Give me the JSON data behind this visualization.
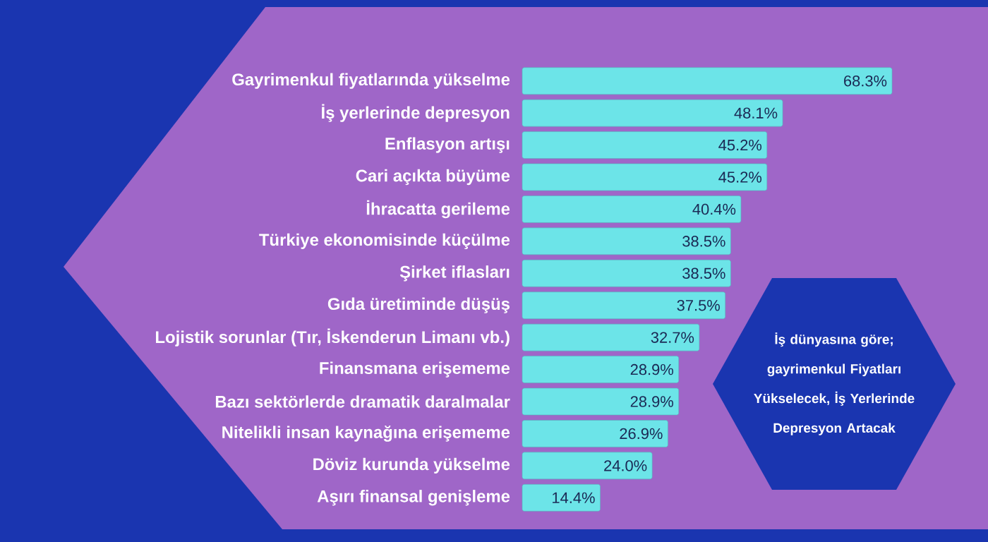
{
  "chart_data": {
    "type": "bar",
    "orientation": "horizontal",
    "title": "İş dünyasına göre; gayrimenkul Fiyatları Yükselecek, İş Yerlerinde Depresyon Artacak",
    "categories": [
      "Gayrimenkul fiyatlarında yükselme",
      "İş yerlerinde depresyon",
      "Enflasyon artışı",
      "Cari açıkta büyüme",
      "İhracatta gerileme",
      "Türkiye ekonomisinde küçülme",
      "Şirket iflasları",
      "Gıda üretiminde düşüş",
      "Lojistik sorunlar (Tır, İskenderun Limanı vb.)",
      "Finansmana erişememe",
      "Bazı sektörlerde dramatik daralmalar",
      "Nitelikli insan kaynağına erişememe",
      "Döviz kurunda yükselme",
      "Aşırı finansal genişleme"
    ],
    "values": [
      68.3,
      48.1,
      45.2,
      45.2,
      40.4,
      38.5,
      38.5,
      37.5,
      32.7,
      28.9,
      28.9,
      26.9,
      24.0,
      14.4
    ],
    "value_labels": [
      "68.3%",
      "48.1%",
      "45.2%",
      "45.2%",
      "40.4%",
      "38.5%",
      "38.5%",
      "37.5%",
      "32.7%",
      "28.9%",
      "28.9%",
      "26.9%",
      "24.0%",
      "14.4%"
    ],
    "color": "#6ce4e8"
  }
}
